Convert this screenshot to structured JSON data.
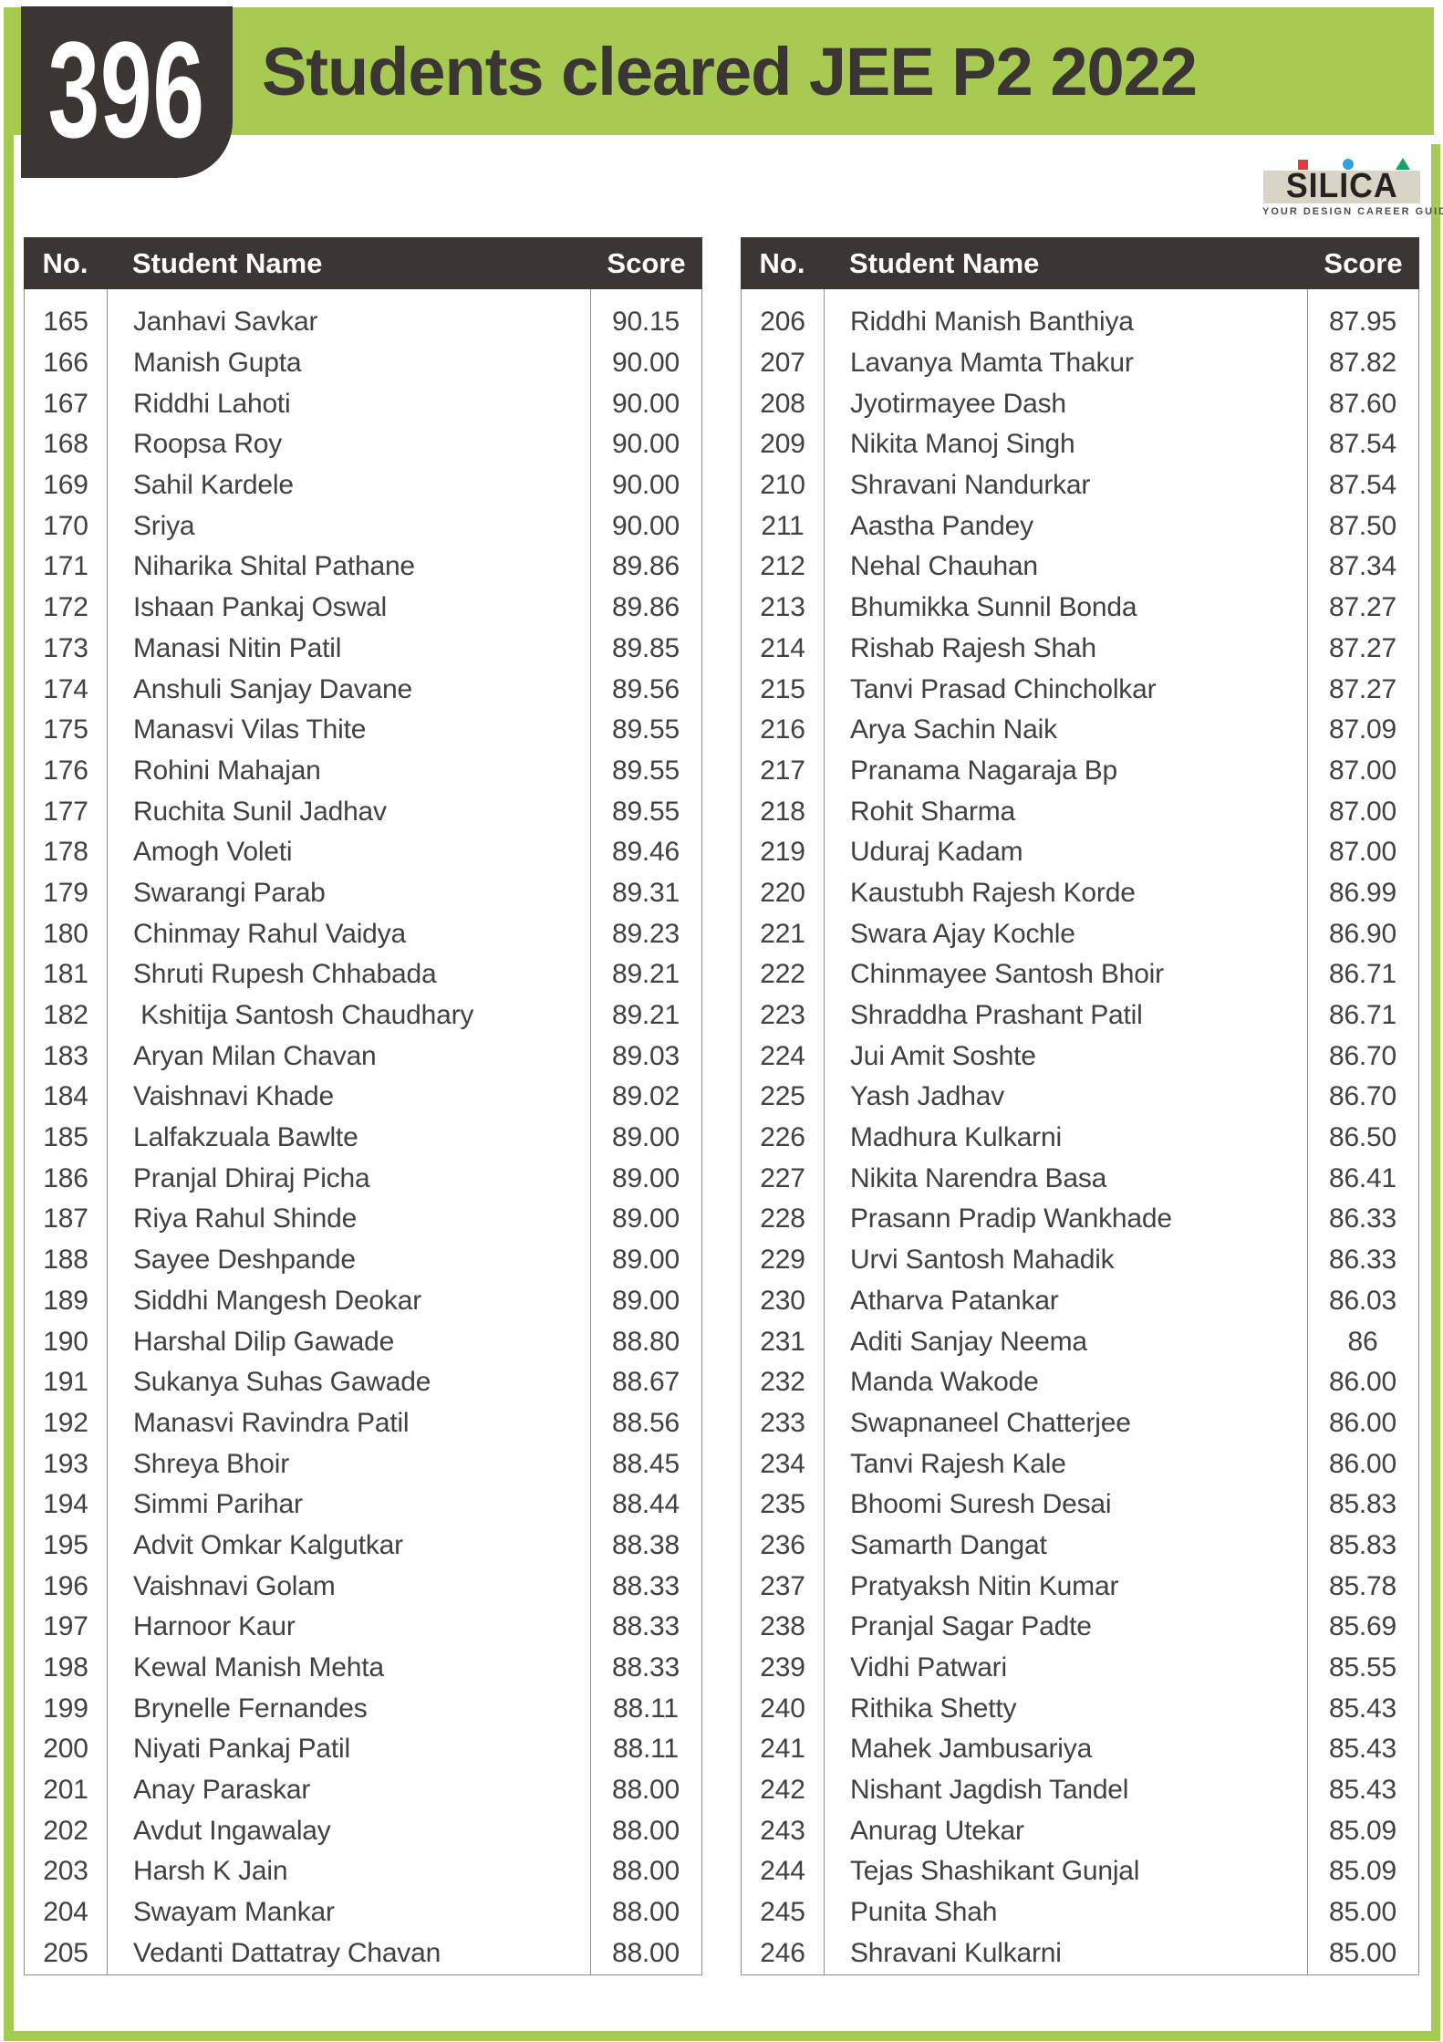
{
  "header": {
    "count": "396",
    "title": "Students cleared JEE P2 2022"
  },
  "logo": {
    "name": "SILICA",
    "tagline": "YOUR DESIGN CAREER GUIDE",
    "mark_icons": [
      "red-square-icon",
      "blue-circle-icon",
      "green-triangle-icon"
    ]
  },
  "colors": {
    "accent_green": "#a6ca52",
    "dark": "#3b3533",
    "table_border": "#8f8f8f",
    "row_text": "#414141",
    "logo_beige": "#d8d4c6",
    "logo_red": "#e23b3b",
    "logo_blue": "#2ba3e0",
    "logo_green": "#15a264"
  },
  "columns": {
    "no": "No.",
    "name": "Student Name",
    "score": "Score"
  },
  "tables": {
    "left": {
      "rows": [
        {
          "no": "165",
          "name": "Janhavi Savkar",
          "score": "90.15"
        },
        {
          "no": "166",
          "name": "Manish Gupta",
          "score": "90.00"
        },
        {
          "no": "167",
          "name": "Riddhi Lahoti",
          "score": "90.00"
        },
        {
          "no": "168",
          "name": "Roopsa Roy",
          "score": "90.00"
        },
        {
          "no": "169",
          "name": "Sahil Kardele",
          "score": "90.00"
        },
        {
          "no": "170",
          "name": "Sriya",
          "score": "90.00"
        },
        {
          "no": "171",
          "name": "Niharika Shital Pathane",
          "score": "89.86"
        },
        {
          "no": "172",
          "name": "Ishaan Pankaj Oswal",
          "score": "89.86"
        },
        {
          "no": "173",
          "name": "Manasi Nitin Patil",
          "score": "89.85"
        },
        {
          "no": "174",
          "name": "Anshuli Sanjay Davane",
          "score": "89.56"
        },
        {
          "no": "175",
          "name": "Manasvi Vilas Thite",
          "score": "89.55"
        },
        {
          "no": "176",
          "name": "Rohini Mahajan",
          "score": "89.55"
        },
        {
          "no": "177",
          "name": "Ruchita Sunil Jadhav",
          "score": "89.55"
        },
        {
          "no": "178",
          "name": "Amogh Voleti",
          "score": "89.46"
        },
        {
          "no": "179",
          "name": "Swarangi Parab",
          "score": "89.31"
        },
        {
          "no": "180",
          "name": "Chinmay Rahul Vaidya",
          "score": "89.23"
        },
        {
          "no": "181",
          "name": "Shruti Rupesh Chhabada",
          "score": "89.21"
        },
        {
          "no": "182",
          "name": " Kshitija Santosh Chaudhary",
          "score": "89.21"
        },
        {
          "no": "183",
          "name": "Aryan Milan Chavan",
          "score": "89.03"
        },
        {
          "no": "184",
          "name": "Vaishnavi Khade",
          "score": "89.02"
        },
        {
          "no": "185",
          "name": "Lalfakzuala Bawlte",
          "score": "89.00"
        },
        {
          "no": "186",
          "name": "Pranjal Dhiraj Picha",
          "score": "89.00"
        },
        {
          "no": "187",
          "name": "Riya Rahul Shinde",
          "score": "89.00"
        },
        {
          "no": "188",
          "name": "Sayee Deshpande",
          "score": "89.00"
        },
        {
          "no": "189",
          "name": "Siddhi Mangesh Deokar",
          "score": "89.00"
        },
        {
          "no": "190",
          "name": "Harshal Dilip Gawade",
          "score": "88.80"
        },
        {
          "no": "191",
          "name": "Sukanya Suhas Gawade",
          "score": "88.67"
        },
        {
          "no": "192",
          "name": "Manasvi Ravindra Patil",
          "score": "88.56"
        },
        {
          "no": "193",
          "name": "Shreya Bhoir",
          "score": "88.45"
        },
        {
          "no": "194",
          "name": "Simmi Parihar",
          "score": "88.44"
        },
        {
          "no": "195",
          "name": "Advit Omkar Kalgutkar",
          "score": "88.38"
        },
        {
          "no": "196",
          "name": "Vaishnavi Golam",
          "score": "88.33"
        },
        {
          "no": "197",
          "name": "Harnoor Kaur",
          "score": "88.33"
        },
        {
          "no": "198",
          "name": "Kewal Manish Mehta",
          "score": "88.33"
        },
        {
          "no": "199",
          "name": "Brynelle Fernandes",
          "score": "88.11"
        },
        {
          "no": "200",
          "name": "Niyati Pankaj Patil",
          "score": "88.11"
        },
        {
          "no": "201",
          "name": "Anay Paraskar",
          "score": "88.00"
        },
        {
          "no": "202",
          "name": "Avdut Ingawalay",
          "score": "88.00"
        },
        {
          "no": "203",
          "name": "Harsh K Jain",
          "score": "88.00"
        },
        {
          "no": "204",
          "name": "Swayam Mankar",
          "score": "88.00"
        },
        {
          "no": "205",
          "name": "Vedanti Dattatray Chavan",
          "score": "88.00"
        }
      ]
    },
    "right": {
      "rows": [
        {
          "no": "206",
          "name": "Riddhi Manish Banthiya",
          "score": "87.95"
        },
        {
          "no": "207",
          "name": "Lavanya Mamta Thakur",
          "score": "87.82"
        },
        {
          "no": "208",
          "name": "Jyotirmayee Dash",
          "score": "87.60"
        },
        {
          "no": "209",
          "name": "Nikita Manoj Singh",
          "score": "87.54"
        },
        {
          "no": "210",
          "name": "Shravani Nandurkar",
          "score": "87.54"
        },
        {
          "no": "211",
          "name": "Aastha Pandey",
          "score": "87.50"
        },
        {
          "no": "212",
          "name": "Nehal Chauhan",
          "score": "87.34"
        },
        {
          "no": "213",
          "name": "Bhumikka Sunnil Bonda",
          "score": "87.27"
        },
        {
          "no": "214",
          "name": "Rishab Rajesh Shah",
          "score": "87.27"
        },
        {
          "no": "215",
          "name": "Tanvi Prasad Chincholkar",
          "score": "87.27"
        },
        {
          "no": "216",
          "name": "Arya Sachin Naik",
          "score": "87.09"
        },
        {
          "no": "217",
          "name": "Pranama Nagaraja Bp",
          "score": "87.00"
        },
        {
          "no": "218",
          "name": "Rohit Sharma",
          "score": "87.00"
        },
        {
          "no": "219",
          "name": "Uduraj Kadam",
          "score": "87.00"
        },
        {
          "no": "220",
          "name": "Kaustubh Rajesh Korde",
          "score": "86.99"
        },
        {
          "no": "221",
          "name": "Swara Ajay Kochle",
          "score": "86.90"
        },
        {
          "no": "222",
          "name": "Chinmayee Santosh Bhoir",
          "score": "86.71"
        },
        {
          "no": "223",
          "name": "Shraddha Prashant Patil",
          "score": "86.71"
        },
        {
          "no": "224",
          "name": "Jui Amit Soshte",
          "score": "86.70"
        },
        {
          "no": "225",
          "name": "Yash Jadhav",
          "score": "86.70"
        },
        {
          "no": "226",
          "name": "Madhura Kulkarni",
          "score": "86.50"
        },
        {
          "no": "227",
          "name": "Nikita Narendra Basa",
          "score": "86.41"
        },
        {
          "no": "228",
          "name": "Prasann Pradip Wankhade",
          "score": "86.33"
        },
        {
          "no": "229",
          "name": "Urvi Santosh Mahadik",
          "score": "86.33"
        },
        {
          "no": "230",
          "name": "Atharva Patankar",
          "score": "86.03"
        },
        {
          "no": "231",
          "name": "Aditi Sanjay Neema",
          "score": "86"
        },
        {
          "no": "232",
          "name": "Manda Wakode",
          "score": "86.00"
        },
        {
          "no": "233",
          "name": "Swapnaneel Chatterjee",
          "score": "86.00"
        },
        {
          "no": "234",
          "name": "Tanvi Rajesh Kale",
          "score": "86.00"
        },
        {
          "no": "235",
          "name": "Bhoomi Suresh Desai",
          "score": "85.83"
        },
        {
          "no": "236",
          "name": "Samarth Dangat",
          "score": "85.83"
        },
        {
          "no": "237",
          "name": "Pratyaksh Nitin Kumar",
          "score": "85.78"
        },
        {
          "no": "238",
          "name": "Pranjal Sagar Padte",
          "score": "85.69"
        },
        {
          "no": "239",
          "name": "Vidhi Patwari",
          "score": "85.55"
        },
        {
          "no": "240",
          "name": "Rithika Shetty",
          "score": "85.43"
        },
        {
          "no": "241",
          "name": "Mahek Jambusariya",
          "score": "85.43"
        },
        {
          "no": "242",
          "name": "Nishant Jagdish Tandel",
          "score": "85.43"
        },
        {
          "no": "243",
          "name": "Anurag Utekar",
          "score": "85.09"
        },
        {
          "no": "244",
          "name": "Tejas Shashikant Gunjal",
          "score": "85.09"
        },
        {
          "no": "245",
          "name": "Punita Shah",
          "score": "85.00"
        },
        {
          "no": "246",
          "name": "Shravani Kulkarni",
          "score": "85.00"
        }
      ]
    }
  }
}
